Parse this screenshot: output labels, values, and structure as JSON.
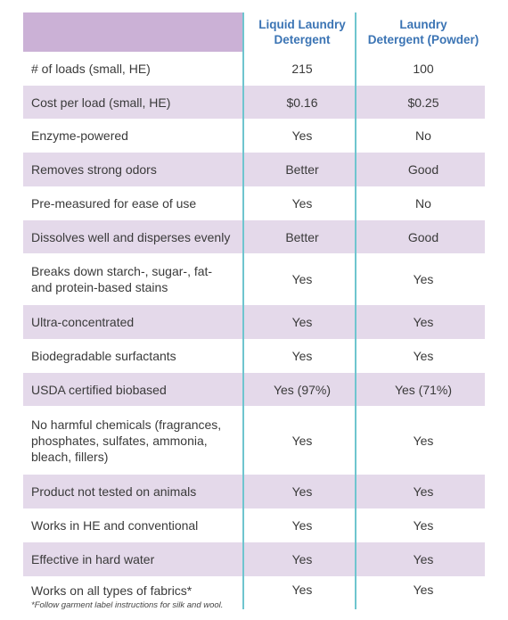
{
  "header": {
    "col1": [
      "Liquid Laundry",
      "Detergent"
    ],
    "col2": [
      "Laundry",
      "Detergent (Powder)"
    ]
  },
  "rows": [
    {
      "label": [
        "# of loads (small, HE)"
      ],
      "v1": "215",
      "v2": "100"
    },
    {
      "label": [
        "Cost per load (small, HE)"
      ],
      "v1": "$0.16",
      "v2": "$0.25"
    },
    {
      "label": [
        "Enzyme-powered"
      ],
      "v1": "Yes",
      "v2": "No"
    },
    {
      "label": [
        "Removes strong odors"
      ],
      "v1": "Better",
      "v2": "Good"
    },
    {
      "label": [
        "Pre-measured for ease of use"
      ],
      "v1": "Yes",
      "v2": "No"
    },
    {
      "label": [
        "Dissolves well and disperses evenly"
      ],
      "v1": "Better",
      "v2": "Good"
    },
    {
      "label": [
        "Breaks down starch-, sugar-, fat-",
        "and protein-based stains"
      ],
      "v1": "Yes",
      "v2": "Yes"
    },
    {
      "label": [
        "Ultra-concentrated"
      ],
      "v1": "Yes",
      "v2": "Yes"
    },
    {
      "label": [
        "Biodegradable surfactants"
      ],
      "v1": "Yes",
      "v2": "Yes"
    },
    {
      "label": [
        "USDA certified biobased"
      ],
      "v1": "Yes (97%)",
      "v2": "Yes (71%)"
    },
    {
      "label": [
        "No harmful chemicals (fragrances,",
        "phosphates, sulfates, ammonia,",
        "bleach, fillers)"
      ],
      "v1": "Yes",
      "v2": "Yes"
    },
    {
      "label": [
        "Product not tested on animals"
      ],
      "v1": "Yes",
      "v2": "Yes"
    },
    {
      "label": [
        "Works in HE and conventional"
      ],
      "v1": "Yes",
      "v2": "Yes"
    },
    {
      "label": [
        "Effective in hard water"
      ],
      "v1": "Yes",
      "v2": "Yes"
    },
    {
      "label": [
        "Works on all types of fabrics*"
      ],
      "v1": "Yes",
      "v2": "Yes",
      "note": "*Follow garment label instructions for silk and wool."
    }
  ],
  "colors": {
    "header_bg": "#cbb1d6",
    "shaded_bg": "#e4d9ea",
    "header_text": "#3b74b4",
    "divider": "#6fc5cf"
  }
}
